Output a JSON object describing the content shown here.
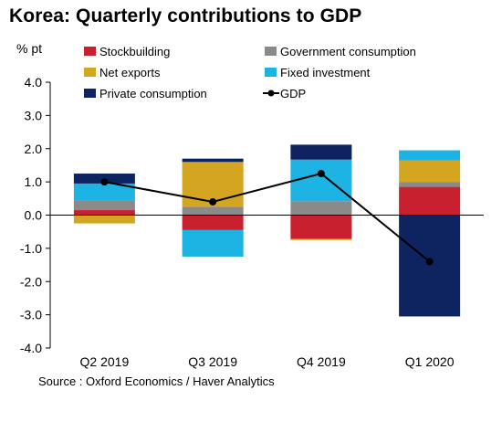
{
  "title": "Korea: Quarterly contributions to GDP",
  "source": "Source : Oxford Economics / Haver Analytics",
  "colors": {
    "stockbuilding": "#c8202e",
    "government": "#8a8a8a",
    "net_exports": "#d4a520",
    "fixed_investment": "#1db4e4",
    "private_consumption": "#0e2461",
    "gdp": "#000000"
  },
  "chart_data": {
    "type": "bar",
    "stacked": true,
    "ylabel": "% pt",
    "ylim": [
      -4.0,
      4.0
    ],
    "yticks": [
      "4.0",
      "3.0",
      "2.0",
      "1.0",
      "0.0",
      "-1.0",
      "-2.0",
      "-3.0",
      "-4.0"
    ],
    "ytick_values": [
      4,
      3,
      2,
      1,
      0,
      -1,
      -2,
      -3,
      -4
    ],
    "categories": [
      "Q2 2019",
      "Q3 2019",
      "Q4 2019",
      "Q1 2020"
    ],
    "legend_position": "top",
    "grid": false,
    "series": [
      {
        "key": "stockbuilding",
        "name": "Stockbuilding",
        "values": [
          0.15,
          -0.45,
          -0.72,
          0.85
        ]
      },
      {
        "key": "government",
        "name": "Government consumption",
        "values": [
          0.3,
          0.25,
          0.42,
          0.15
        ]
      },
      {
        "key": "net_exports",
        "name": "Net exports",
        "values": [
          -0.25,
          1.35,
          -0.03,
          0.65
        ]
      },
      {
        "key": "fixed_investment",
        "name": "Fixed investment",
        "values": [
          0.5,
          -0.8,
          1.25,
          0.3
        ]
      },
      {
        "key": "private_consumption",
        "name": "Private consumption",
        "values": [
          0.3,
          0.1,
          0.45,
          -3.05
        ]
      }
    ],
    "line": {
      "key": "gdp",
      "name": "GDP",
      "values": [
        1.0,
        0.4,
        1.25,
        -1.4
      ]
    }
  }
}
